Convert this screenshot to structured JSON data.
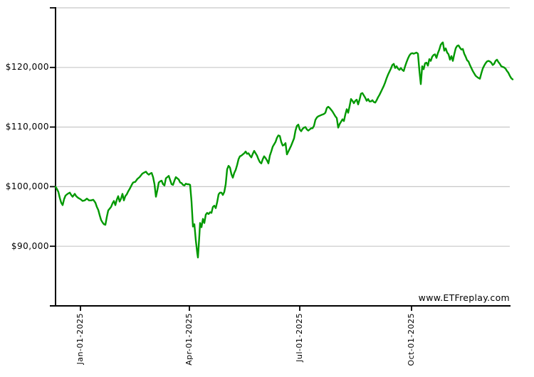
{
  "watermark": {
    "text": "www.ETFreplay.com"
  },
  "chart_data": {
    "type": "line",
    "title": "",
    "xlabel": "",
    "ylabel": "",
    "grid": "horizontal-only",
    "legend": "none",
    "series_name": "portfolio-value",
    "line_color": "#009900",
    "gridline_color": "#c8c8c8",
    "axis_color": "#000000",
    "y_axis": {
      "range": [
        80000,
        130000
      ],
      "tick_labels": [
        "$120,000",
        "$110,000",
        "$100,000",
        "$90,000"
      ],
      "tick_values": [
        120000,
        110000,
        100000,
        90000
      ],
      "gridline_values": [
        130000,
        120000,
        110000,
        100000,
        90000
      ]
    },
    "x_axis": {
      "tick_labels": [
        "Jan-01-2025",
        "Apr-01-2025",
        "Jul-01-2025",
        "Oct-01-2025"
      ],
      "tick_x": [
        113,
        266,
        421,
        578
      ]
    },
    "points": [
      [
        78,
        100000
      ],
      [
        80,
        99600
      ],
      [
        82,
        99100
      ],
      [
        84,
        98100
      ],
      [
        86,
        97300
      ],
      [
        88,
        96900
      ],
      [
        90,
        97900
      ],
      [
        92,
        98500
      ],
      [
        95,
        98800
      ],
      [
        98,
        99000
      ],
      [
        100,
        98600
      ],
      [
        102,
        98300
      ],
      [
        105,
        98800
      ],
      [
        107,
        98400
      ],
      [
        110,
        98100
      ],
      [
        113,
        97900
      ],
      [
        116,
        97600
      ],
      [
        119,
        97700
      ],
      [
        122,
        98000
      ],
      [
        125,
        97700
      ],
      [
        128,
        97700
      ],
      [
        131,
        97800
      ],
      [
        134,
        97300
      ],
      [
        136,
        96600
      ],
      [
        138,
        96100
      ],
      [
        140,
        95200
      ],
      [
        142,
        94400
      ],
      [
        144,
        94000
      ],
      [
        146,
        93700
      ],
      [
        148,
        93600
      ],
      [
        150,
        94900
      ],
      [
        152,
        96000
      ],
      [
        154,
        96300
      ],
      [
        156,
        96600
      ],
      [
        158,
        97200
      ],
      [
        160,
        97600
      ],
      [
        162,
        96900
      ],
      [
        164,
        97800
      ],
      [
        166,
        98400
      ],
      [
        168,
        97500
      ],
      [
        170,
        98000
      ],
      [
        172,
        98800
      ],
      [
        174,
        97700
      ],
      [
        176,
        98400
      ],
      [
        178,
        98700
      ],
      [
        180,
        99200
      ],
      [
        182,
        99600
      ],
      [
        185,
        100300
      ],
      [
        187,
        100700
      ],
      [
        190,
        100800
      ],
      [
        193,
        101300
      ],
      [
        196,
        101600
      ],
      [
        198,
        101900
      ],
      [
        200,
        102200
      ],
      [
        203,
        102400
      ],
      [
        205,
        102500
      ],
      [
        207,
        102200
      ],
      [
        209,
        102000
      ],
      [
        211,
        102200
      ],
      [
        213,
        102300
      ],
      [
        215,
        101600
      ],
      [
        217,
        100400
      ],
      [
        219,
        98300
      ],
      [
        221,
        99400
      ],
      [
        223,
        100700
      ],
      [
        225,
        100900
      ],
      [
        227,
        101000
      ],
      [
        229,
        100400
      ],
      [
        231,
        100200
      ],
      [
        233,
        101400
      ],
      [
        235,
        101600
      ],
      [
        237,
        101800
      ],
      [
        239,
        101100
      ],
      [
        241,
        100400
      ],
      [
        243,
        100300
      ],
      [
        245,
        101000
      ],
      [
        247,
        101600
      ],
      [
        249,
        101400
      ],
      [
        251,
        101200
      ],
      [
        253,
        100700
      ],
      [
        255,
        100600
      ],
      [
        257,
        100300
      ],
      [
        259,
        100200
      ],
      [
        261,
        100500
      ],
      [
        263,
        100400
      ],
      [
        265,
        100400
      ],
      [
        267,
        100300
      ],
      [
        269,
        97500
      ],
      [
        271,
        93300
      ],
      [
        273,
        93700
      ],
      [
        275,
        91000
      ],
      [
        277,
        88900
      ],
      [
        278,
        88100
      ],
      [
        280,
        91800
      ],
      [
        281,
        93900
      ],
      [
        283,
        93200
      ],
      [
        285,
        94600
      ],
      [
        287,
        93900
      ],
      [
        289,
        95300
      ],
      [
        291,
        95600
      ],
      [
        293,
        95400
      ],
      [
        295,
        95700
      ],
      [
        297,
        95600
      ],
      [
        299,
        96600
      ],
      [
        301,
        96800
      ],
      [
        303,
        96400
      ],
      [
        305,
        97400
      ],
      [
        307,
        98700
      ],
      [
        309,
        99000
      ],
      [
        311,
        99000
      ],
      [
        313,
        98600
      ],
      [
        315,
        99100
      ],
      [
        317,
        100400
      ],
      [
        319,
        102900
      ],
      [
        321,
        103500
      ],
      [
        323,
        103200
      ],
      [
        325,
        102100
      ],
      [
        327,
        101500
      ],
      [
        329,
        102300
      ],
      [
        331,
        102800
      ],
      [
        333,
        103600
      ],
      [
        335,
        104600
      ],
      [
        337,
        105100
      ],
      [
        339,
        105200
      ],
      [
        341,
        105400
      ],
      [
        343,
        105600
      ],
      [
        345,
        105900
      ],
      [
        347,
        105500
      ],
      [
        349,
        105600
      ],
      [
        351,
        105200
      ],
      [
        353,
        104900
      ],
      [
        355,
        105500
      ],
      [
        357,
        106000
      ],
      [
        359,
        105600
      ],
      [
        361,
        105200
      ],
      [
        363,
        104600
      ],
      [
        365,
        104100
      ],
      [
        367,
        103900
      ],
      [
        369,
        104600
      ],
      [
        371,
        105100
      ],
      [
        373,
        104800
      ],
      [
        375,
        104400
      ],
      [
        377,
        103900
      ],
      [
        379,
        105200
      ],
      [
        381,
        105900
      ],
      [
        383,
        106700
      ],
      [
        385,
        107100
      ],
      [
        387,
        107500
      ],
      [
        389,
        108200
      ],
      [
        391,
        108600
      ],
      [
        393,
        108500
      ],
      [
        395,
        107500
      ],
      [
        397,
        106900
      ],
      [
        399,
        107000
      ],
      [
        401,
        107300
      ],
      [
        403,
        105400
      ],
      [
        405,
        105900
      ],
      [
        407,
        106400
      ],
      [
        409,
        106900
      ],
      [
        411,
        107500
      ],
      [
        413,
        108100
      ],
      [
        415,
        109400
      ],
      [
        417,
        110200
      ],
      [
        419,
        110400
      ],
      [
        421,
        109600
      ],
      [
        423,
        109300
      ],
      [
        425,
        109700
      ],
      [
        427,
        109900
      ],
      [
        429,
        110000
      ],
      [
        431,
        109600
      ],
      [
        433,
        109400
      ],
      [
        435,
        109600
      ],
      [
        437,
        109800
      ],
      [
        439,
        109800
      ],
      [
        441,
        110200
      ],
      [
        443,
        111200
      ],
      [
        445,
        111600
      ],
      [
        447,
        111800
      ],
      [
        449,
        111900
      ],
      [
        451,
        112000
      ],
      [
        453,
        112100
      ],
      [
        455,
        112200
      ],
      [
        457,
        112400
      ],
      [
        459,
        113200
      ],
      [
        461,
        113400
      ],
      [
        463,
        113200
      ],
      [
        465,
        112900
      ],
      [
        467,
        112600
      ],
      [
        469,
        112200
      ],
      [
        471,
        111800
      ],
      [
        473,
        111500
      ],
      [
        475,
        109900
      ],
      [
        477,
        110500
      ],
      [
        479,
        110900
      ],
      [
        481,
        111300
      ],
      [
        483,
        111000
      ],
      [
        485,
        112100
      ],
      [
        487,
        113000
      ],
      [
        489,
        112400
      ],
      [
        491,
        113500
      ],
      [
        493,
        114700
      ],
      [
        495,
        114400
      ],
      [
        497,
        114000
      ],
      [
        499,
        114400
      ],
      [
        501,
        114600
      ],
      [
        503,
        113800
      ],
      [
        505,
        114600
      ],
      [
        507,
        115600
      ],
      [
        509,
        115700
      ],
      [
        511,
        115300
      ],
      [
        513,
        114900
      ],
      [
        515,
        114400
      ],
      [
        517,
        114700
      ],
      [
        519,
        114300
      ],
      [
        521,
        114300
      ],
      [
        523,
        114500
      ],
      [
        525,
        114200
      ],
      [
        527,
        114100
      ],
      [
        529,
        114500
      ],
      [
        531,
        115000
      ],
      [
        533,
        115400
      ],
      [
        535,
        115900
      ],
      [
        537,
        116400
      ],
      [
        539,
        116900
      ],
      [
        541,
        117500
      ],
      [
        543,
        118200
      ],
      [
        545,
        118800
      ],
      [
        547,
        119300
      ],
      [
        549,
        119800
      ],
      [
        551,
        120400
      ],
      [
        553,
        120600
      ],
      [
        555,
        119900
      ],
      [
        557,
        120200
      ],
      [
        559,
        119800
      ],
      [
        561,
        119600
      ],
      [
        563,
        119900
      ],
      [
        565,
        119600
      ],
      [
        567,
        119400
      ],
      [
        569,
        120200
      ],
      [
        571,
        120900
      ],
      [
        573,
        121500
      ],
      [
        575,
        122000
      ],
      [
        577,
        122300
      ],
      [
        579,
        122400
      ],
      [
        581,
        122300
      ],
      [
        583,
        122400
      ],
      [
        585,
        122500
      ],
      [
        587,
        122300
      ],
      [
        589,
        119500
      ],
      [
        591,
        117200
      ],
      [
        593,
        120200
      ],
      [
        595,
        119700
      ],
      [
        597,
        120700
      ],
      [
        599,
        120800
      ],
      [
        601,
        120300
      ],
      [
        603,
        121400
      ],
      [
        605,
        121100
      ],
      [
        607,
        121800
      ],
      [
        609,
        122100
      ],
      [
        611,
        122200
      ],
      [
        613,
        121600
      ],
      [
        615,
        122400
      ],
      [
        617,
        123000
      ],
      [
        619,
        123800
      ],
      [
        621,
        124100
      ],
      [
        622,
        124200
      ],
      [
        624,
        122800
      ],
      [
        626,
        123200
      ],
      [
        628,
        122500
      ],
      [
        630,
        122200
      ],
      [
        632,
        121300
      ],
      [
        634,
        121900
      ],
      [
        636,
        121100
      ],
      [
        638,
        122200
      ],
      [
        640,
        123200
      ],
      [
        642,
        123600
      ],
      [
        644,
        123700
      ],
      [
        646,
        123300
      ],
      [
        648,
        123000
      ],
      [
        650,
        123100
      ],
      [
        652,
        122300
      ],
      [
        654,
        121800
      ],
      [
        656,
        121200
      ],
      [
        658,
        121000
      ],
      [
        660,
        120400
      ],
      [
        662,
        119900
      ],
      [
        664,
        119400
      ],
      [
        666,
        119000
      ],
      [
        668,
        118600
      ],
      [
        671,
        118300
      ],
      [
        674,
        118100
      ],
      [
        676,
        119000
      ],
      [
        678,
        119800
      ],
      [
        680,
        120300
      ],
      [
        682,
        120700
      ],
      [
        684,
        121000
      ],
      [
        686,
        121100
      ],
      [
        688,
        121000
      ],
      [
        690,
        120800
      ],
      [
        692,
        120400
      ],
      [
        694,
        120600
      ],
      [
        696,
        121100
      ],
      [
        698,
        121300
      ],
      [
        700,
        120900
      ],
      [
        702,
        120600
      ],
      [
        704,
        120200
      ],
      [
        706,
        120100
      ],
      [
        708,
        120000
      ],
      [
        710,
        119800
      ],
      [
        712,
        119400
      ],
      [
        714,
        119100
      ],
      [
        716,
        118600
      ],
      [
        718,
        118200
      ],
      [
        720,
        118000
      ]
    ]
  }
}
